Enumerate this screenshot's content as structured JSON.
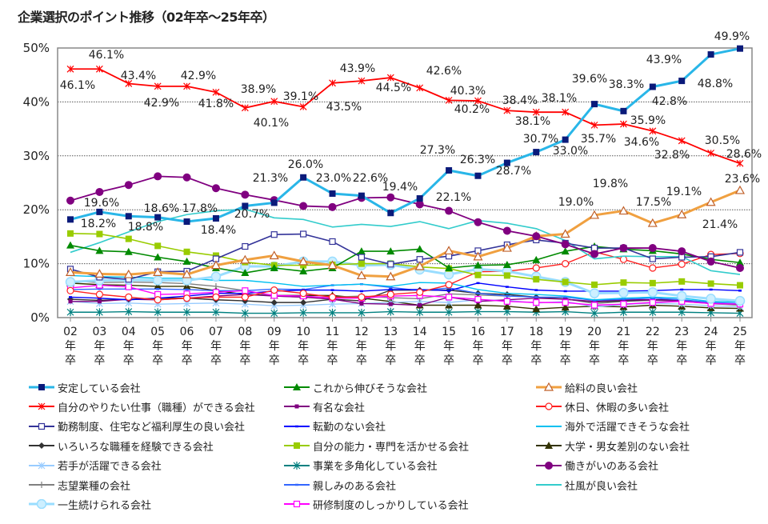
{
  "chart_data": {
    "type": "line",
    "title": "企業選択のポイント推移（02年卒～25年卒）",
    "xlabel": "",
    "ylabel": "",
    "ylim": [
      0,
      50
    ],
    "yticks": [
      "0%",
      "10%",
      "20%",
      "30%",
      "40%",
      "50%"
    ],
    "grid": "horizontal dotted",
    "legend_placement": "bottom",
    "categories": [
      "02年卒",
      "03年卒",
      "04年卒",
      "05年卒",
      "06年卒",
      "07年卒",
      "08年卒",
      "09年卒",
      "10年卒",
      "11年卒",
      "12年卒",
      "13年卒",
      "14年卒",
      "15年卒",
      "16年卒",
      "17年卒",
      "18年卒",
      "19年卒",
      "20年卒",
      "21年卒",
      "22年卒",
      "23年卒",
      "24年卒",
      "25年卒"
    ],
    "series": [
      {
        "name": "安定している会社",
        "color": "#29B6E8",
        "marker_color": "#0A1A7A",
        "marker": "square-filled",
        "values": [
          18.2,
          19.6,
          18.8,
          18.6,
          17.8,
          18.4,
          20.7,
          21.3,
          26.0,
          23.0,
          22.6,
          19.4,
          22.1,
          27.3,
          26.3,
          28.7,
          30.7,
          33.0,
          39.6,
          38.3,
          42.8,
          43.9,
          48.8,
          49.9
        ],
        "data_labels": [
          "18.2%",
          "19.6%",
          "18.8%",
          "18.6%",
          "17.8%",
          "18.4%",
          "20.7%",
          "21.3%",
          "26.0%",
          "23.0%",
          "22.6%",
          "19.4%",
          "22.1%",
          "27.3%",
          "26.3%",
          "28.7%",
          "30.7%",
          "33.0%",
          "39.6%",
          "38.3%",
          "42.8%",
          "43.9%",
          "48.8%",
          "49.9%"
        ]
      },
      {
        "name": "これから伸びそうな会社",
        "color": "#008A00",
        "marker": "triangle-filled",
        "values": [
          13.4,
          12.4,
          12.2,
          11.2,
          10.4,
          9.2,
          8.3,
          9.2,
          8.6,
          9.2,
          12.3,
          12.3,
          12.7,
          9.2,
          9.7,
          9.8,
          10.7,
          12.3,
          13.2,
          12.7,
          12.4,
          11.8,
          10.8,
          10.2
        ]
      },
      {
        "name": "給料の良い会社",
        "color": "#F0A040",
        "marker_color": "#C0602A",
        "marker": "triangle-hollow",
        "values": [
          8.4,
          8.1,
          8.0,
          8.4,
          8.0,
          9.7,
          10.7,
          11.5,
          10.4,
          9.7,
          7.8,
          7.6,
          9.5,
          12.4,
          11.3,
          12.9,
          15.1,
          15.5,
          19.0,
          19.8,
          17.5,
          19.1,
          21.4,
          23.6
        ],
        "data_labels": [
          "",
          "",
          "",
          "",
          "",
          "",
          "",
          "",
          "",
          "",
          "",
          "",
          "",
          "",
          "",
          "",
          "",
          "",
          "19.0%",
          "19.8%",
          "17.5%",
          "19.1%",
          "21.4%",
          "23.6%"
        ]
      },
      {
        "name": "自分のやりたい仕事（職種）ができる会社",
        "color": "#FF0000",
        "marker": "x",
        "values": [
          46.1,
          46.1,
          43.4,
          42.9,
          42.9,
          41.8,
          38.9,
          40.1,
          39.1,
          43.5,
          43.9,
          44.5,
          42.6,
          40.3,
          40.2,
          38.4,
          38.1,
          38.1,
          35.7,
          35.9,
          34.6,
          32.8,
          30.5,
          28.6
        ],
        "data_labels": [
          "46.1%",
          "46.1%",
          "43.4%",
          "42.9%",
          "42.9%",
          "41.8%",
          "38.9%",
          "40.1%",
          "39.1%",
          "43.5%",
          "43.9%",
          "44.5%",
          "42.6%",
          "40.3%",
          "40.2%",
          "38.4%",
          "38.1%",
          "38.1%",
          "35.7%",
          "35.9%",
          "34.6%",
          "32.8%",
          "30.5%",
          "28.6%"
        ]
      },
      {
        "name": "有名な会社",
        "color": "#800080",
        "marker": "square-small",
        "values": [
          3.0,
          3.0,
          3.4,
          3.3,
          3.6,
          4.0,
          4.3,
          4.0,
          3.8,
          3.4,
          2.6,
          2.5,
          2.3,
          3.8,
          3.0,
          3.3,
          3.6,
          3.4,
          3.0,
          3.3,
          3.3,
          3.1,
          2.6,
          2.5
        ]
      },
      {
        "name": "休日、休暇の多い会社",
        "color": "#FF2020",
        "marker": "circle-hollow",
        "values": [
          5.0,
          4.3,
          3.8,
          3.3,
          3.6,
          3.8,
          3.8,
          5.1,
          4.5,
          3.8,
          3.8,
          4.3,
          4.7,
          6.1,
          8.5,
          8.6,
          9.2,
          10.0,
          12.2,
          10.8,
          9.2,
          9.9,
          11.7,
          11.9
        ]
      },
      {
        "name": "勤務制度、住宅など福利厚生の良い会社",
        "color": "#333399",
        "marker": "square-hollow",
        "values": [
          9.0,
          7.5,
          7.1,
          8.5,
          8.6,
          10.9,
          13.2,
          15.4,
          15.5,
          14.1,
          11.2,
          9.9,
          10.8,
          11.4,
          12.4,
          13.5,
          14.4,
          13.8,
          12.9,
          12.9,
          10.9,
          11.2,
          11.3,
          12.1
        ]
      },
      {
        "name": "転勤のない会社",
        "color": "#0000FF",
        "marker": "dash",
        "values": [
          3.8,
          3.6,
          3.3,
          3.6,
          4.0,
          4.5,
          4.5,
          4.9,
          5.1,
          5.1,
          4.9,
          5.2,
          5.2,
          5.0,
          6.4,
          5.7,
          5.1,
          4.9,
          4.9,
          4.9,
          5.0,
          5.2,
          5.2,
          5.0
        ]
      },
      {
        "name": "海外で活躍できそうな会社",
        "color": "#00C0F0",
        "marker": "none",
        "values": [
          7.8,
          7.6,
          7.5,
          7.3,
          7.3,
          6.9,
          6.9,
          6.4,
          5.8,
          6.0,
          6.2,
          5.8,
          6.5,
          6.4,
          5.2,
          4.5,
          4.3,
          4.0,
          3.3,
          3.6,
          3.8,
          3.6,
          3.0,
          2.9
        ]
      },
      {
        "name": "いろいろな職種を経験できる会社",
        "color": "#333333",
        "marker": "diamond",
        "values": [
          3.4,
          3.2,
          3.4,
          3.6,
          3.6,
          3.3,
          3.1,
          2.8,
          2.8,
          3.4,
          3.1,
          5.1,
          5.1,
          5.1,
          4.5,
          4.3,
          3.8,
          3.4,
          2.9,
          3.1,
          3.3,
          3.3,
          2.6,
          2.5
        ]
      },
      {
        "name": "自分の能力・専門を活かせる会社",
        "color": "#99CC00",
        "marker": "square-filled",
        "values": [
          15.6,
          15.5,
          14.6,
          13.3,
          12.2,
          11.5,
          10.3,
          9.7,
          9.7,
          9.8,
          10.0,
          10.0,
          9.4,
          9.1,
          7.9,
          7.8,
          7.1,
          6.6,
          6.1,
          6.5,
          6.4,
          6.7,
          6.3,
          6.0
        ]
      },
      {
        "name": "大学・男女差別のない会社",
        "color": "#333300",
        "marker": "triangle-filled",
        "values": [
          6.4,
          6.1,
          6.0,
          5.8,
          5.8,
          5.0,
          4.3,
          4.1,
          4.1,
          4.1,
          3.6,
          3.0,
          2.3,
          2.3,
          2.3,
          2.1,
          1.6,
          1.9,
          2.1,
          2.0,
          2.3,
          2.1,
          1.8,
          1.7
        ]
      },
      {
        "name": "若手が活躍できる会社",
        "color": "#99CCFF",
        "marker": "x",
        "values": [
          3.0,
          2.6,
          2.7,
          2.5,
          2.6,
          2.7,
          2.5,
          2.2,
          2.3,
          2.5,
          2.6,
          2.8,
          3.0,
          2.8,
          3.3,
          3.2,
          2.7,
          3.0,
          2.0,
          2.4,
          2.7,
          2.5,
          2.2,
          2.0
        ]
      },
      {
        "name": "事業を多角化している会社",
        "color": "#008080",
        "marker": "asterisk",
        "values": [
          1.0,
          1.0,
          1.1,
          1.0,
          1.0,
          1.0,
          0.8,
          0.8,
          0.9,
          0.9,
          0.9,
          1.1,
          1.0,
          1.0,
          1.1,
          1.1,
          1.0,
          1.1,
          0.8,
          1.0,
          1.0,
          1.0,
          0.9,
          0.8
        ]
      },
      {
        "name": "働きがいのある会社",
        "color": "#800080",
        "marker": "circle-filled",
        "values": [
          21.7,
          23.3,
          24.6,
          26.2,
          26.0,
          24.0,
          22.8,
          21.8,
          20.7,
          20.5,
          22.2,
          22.3,
          21.0,
          19.8,
          17.7,
          16.1,
          15.1,
          13.6,
          11.8,
          12.9,
          12.9,
          12.3,
          10.4,
          9.2
        ]
      },
      {
        "name": "志望業種の会社",
        "color": "#808080",
        "marker": "plus",
        "values": [
          6.8,
          6.5,
          6.6,
          6.5,
          6.3,
          5.8,
          5.0,
          4.0,
          3.8,
          3.8,
          4.0,
          3.7,
          3.5,
          4.4,
          4.2,
          4.0,
          3.8,
          3.5,
          2.6,
          3.0,
          3.2,
          3.0,
          2.6,
          2.3
        ]
      },
      {
        "name": "親しみのある会社",
        "color": "#3366FF",
        "marker": "dash",
        "values": [
          5.2,
          5.3,
          5.3,
          5.3,
          5.2,
          5.0,
          5.0,
          5.3,
          5.2,
          6.0,
          6.2,
          5.6,
          5.0,
          5.5,
          4.5,
          4.0,
          3.8,
          3.8,
          3.2,
          3.4,
          3.6,
          3.3,
          2.8,
          2.6
        ]
      },
      {
        "name": "社風が良い会社",
        "color": "#33CCCC",
        "marker": "none",
        "values": [
          12.1,
          13.9,
          15.9,
          17.8,
          19.1,
          19.8,
          20.1,
          18.5,
          18.2,
          16.8,
          17.3,
          16.9,
          17.8,
          16.5,
          18.0,
          17.5,
          16.5,
          14.3,
          10.9,
          11.4,
          11.3,
          11.3,
          8.7,
          8.0
        ]
      },
      {
        "name": "一生続けられる会社",
        "color": "#99DDFF",
        "marker": "circle-light",
        "values": [
          6.6,
          6.9,
          7.0,
          6.9,
          6.9,
          7.6,
          9.5,
          9.5,
          10.4,
          10.4,
          9.7,
          9.8,
          8.9,
          8.0,
          9.0,
          8.6,
          7.6,
          6.6,
          4.5,
          4.6,
          4.7,
          4.0,
          3.5,
          3.1
        ]
      },
      {
        "name": "研修制度のしっかりしている会社",
        "color": "#FF00FF",
        "marker": "square-hollow",
        "values": [
          5.5,
          6.0,
          5.7,
          4.3,
          4.4,
          4.7,
          5.0,
          4.1,
          4.0,
          3.6,
          3.6,
          4.0,
          4.1,
          3.8,
          3.4,
          3.0,
          2.8,
          2.8,
          2.3,
          2.5,
          2.8,
          3.0,
          2.6,
          2.5
        ]
      }
    ]
  }
}
